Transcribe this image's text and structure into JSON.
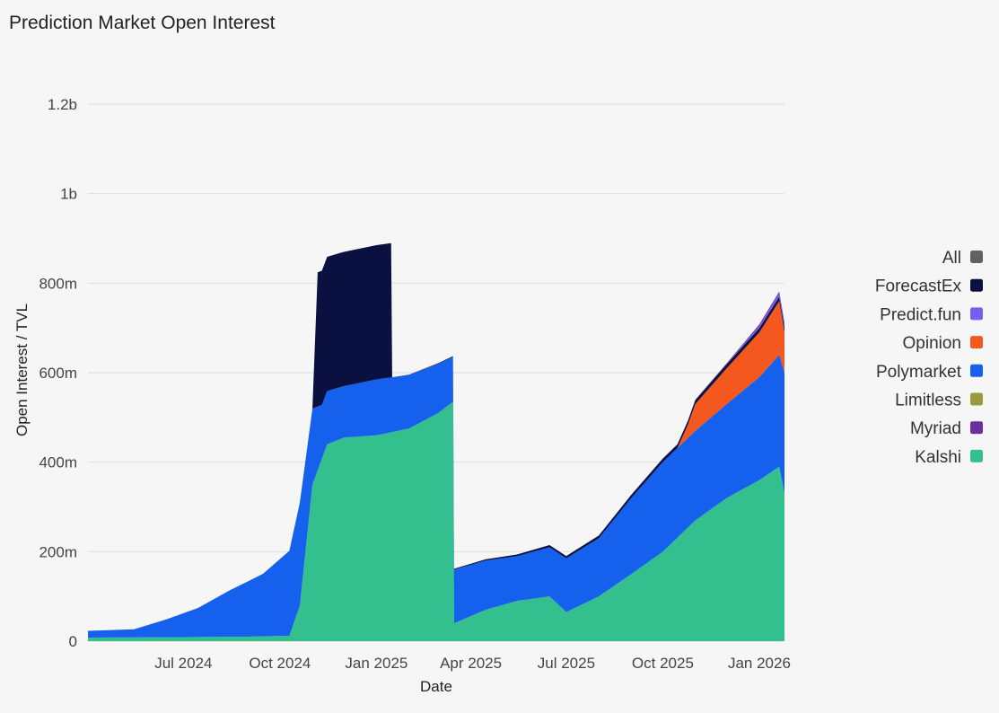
{
  "title": "Prediction Market Open Interest",
  "chart_data": {
    "type": "area",
    "stacked": true,
    "xlabel": "Date",
    "ylabel": "Open Interest / TVL",
    "x_range": [
      "2024-04-01",
      "2026-01-25"
    ],
    "ylim": [
      0,
      1200000000
    ],
    "y_ticks": [
      {
        "value": 0,
        "label": "0"
      },
      {
        "value": 200000000,
        "label": "200m"
      },
      {
        "value": 400000000,
        "label": "400m"
      },
      {
        "value": 600000000,
        "label": "600m"
      },
      {
        "value": 800000000,
        "label": "800m"
      },
      {
        "value": 1000000000,
        "label": "1b"
      },
      {
        "value": 1200000000,
        "label": "1.2b"
      }
    ],
    "x_ticks": [
      {
        "date": "2024-07-01",
        "label": "Jul 2024"
      },
      {
        "date": "2024-10-01",
        "label": "Oct 2024"
      },
      {
        "date": "2025-01-01",
        "label": "Jan 2025"
      },
      {
        "date": "2025-04-01",
        "label": "Apr 2025"
      },
      {
        "date": "2025-07-01",
        "label": "Jul 2025"
      },
      {
        "date": "2025-10-01",
        "label": "Oct 2025"
      },
      {
        "date": "2026-01-01",
        "label": "Jan 2026"
      }
    ],
    "grid": true,
    "legend_position": "right",
    "legend": [
      {
        "name": "All",
        "color": "#5f6166"
      },
      {
        "name": "ForecastEx",
        "color": "#0a1140"
      },
      {
        "name": "Predict.fun",
        "color": "#7b5cf0"
      },
      {
        "name": "Opinion",
        "color": "#f4581e"
      },
      {
        "name": "Polymarket",
        "color": "#1560ec"
      },
      {
        "name": "Limitless",
        "color": "#9b9a3e"
      },
      {
        "name": "Myriad",
        "color": "#6a2fa0"
      },
      {
        "name": "Kalshi",
        "color": "#34c08e"
      }
    ],
    "series": [
      {
        "name": "Kalshi",
        "color": "#34c08e",
        "points": [
          [
            "2024-04-01",
            8000000
          ],
          [
            "2024-07-01",
            9000000
          ],
          [
            "2024-09-01",
            10000000
          ],
          [
            "2024-10-10",
            12000000
          ],
          [
            "2024-10-20",
            80000000
          ],
          [
            "2024-11-01",
            350000000
          ],
          [
            "2024-11-15",
            440000000
          ],
          [
            "2024-12-01",
            455000000
          ],
          [
            "2025-01-01",
            460000000
          ],
          [
            "2025-02-01",
            475000000
          ],
          [
            "2025-03-01",
            510000000
          ],
          [
            "2025-03-15",
            535000000
          ],
          [
            "2025-03-16",
            40000000
          ],
          [
            "2025-04-15",
            70000000
          ],
          [
            "2025-05-15",
            90000000
          ],
          [
            "2025-06-15",
            100000000
          ],
          [
            "2025-07-01",
            65000000
          ],
          [
            "2025-08-01",
            100000000
          ],
          [
            "2025-09-01",
            150000000
          ],
          [
            "2025-10-01",
            200000000
          ],
          [
            "2025-11-01",
            270000000
          ],
          [
            "2025-12-01",
            320000000
          ],
          [
            "2026-01-01",
            360000000
          ],
          [
            "2026-01-20",
            390000000
          ],
          [
            "2026-01-25",
            330000000
          ]
        ]
      },
      {
        "name": "Polymarket",
        "color": "#1560ec",
        "points": [
          [
            "2024-04-01",
            15000000
          ],
          [
            "2024-05-15",
            18000000
          ],
          [
            "2024-06-15",
            40000000
          ],
          [
            "2024-07-15",
            65000000
          ],
          [
            "2024-08-15",
            105000000
          ],
          [
            "2024-09-15",
            140000000
          ],
          [
            "2024-10-10",
            190000000
          ],
          [
            "2024-10-20",
            230000000
          ],
          [
            "2024-11-01",
            170000000
          ],
          [
            "2024-11-10",
            120000000
          ],
          [
            "2024-12-01",
            115000000
          ],
          [
            "2025-01-01",
            125000000
          ],
          [
            "2025-02-01",
            120000000
          ],
          [
            "2025-03-01",
            110000000
          ],
          [
            "2025-03-15",
            100000000
          ],
          [
            "2025-03-16",
            120000000
          ],
          [
            "2025-04-15",
            110000000
          ],
          [
            "2025-05-15",
            100000000
          ],
          [
            "2025-06-15",
            110000000
          ],
          [
            "2025-07-01",
            120000000
          ],
          [
            "2025-08-01",
            130000000
          ],
          [
            "2025-09-01",
            170000000
          ],
          [
            "2025-10-01",
            200000000
          ],
          [
            "2025-11-01",
            200000000
          ],
          [
            "2025-12-01",
            210000000
          ],
          [
            "2026-01-01",
            230000000
          ],
          [
            "2026-01-20",
            250000000
          ],
          [
            "2026-01-25",
            270000000
          ]
        ]
      },
      {
        "name": "Opinion",
        "color": "#f4581e",
        "points": [
          [
            "2025-10-15",
            0
          ],
          [
            "2025-10-25",
            30000000
          ],
          [
            "2025-11-01",
            60000000
          ],
          [
            "2025-12-01",
            80000000
          ],
          [
            "2026-01-01",
            100000000
          ],
          [
            "2026-01-20",
            120000000
          ],
          [
            "2026-01-25",
            90000000
          ]
        ]
      },
      {
        "name": "ForecastEx",
        "color": "#0a1140",
        "points": [
          [
            "2024-11-01",
            0
          ],
          [
            "2024-11-06",
            300000000
          ],
          [
            "2024-11-15",
            300000000
          ],
          [
            "2024-12-01",
            300000000
          ],
          [
            "2025-01-01",
            300000000
          ],
          [
            "2025-01-15",
            300000000
          ],
          [
            "2025-01-16",
            0
          ],
          [
            "2025-10-01",
            8000000
          ],
          [
            "2026-01-25",
            10000000
          ]
        ]
      },
      {
        "name": "Predict.fun",
        "color": "#7b5cf0",
        "points": [
          [
            "2025-12-01",
            0
          ],
          [
            "2026-01-01",
            5000000
          ],
          [
            "2026-01-25",
            8000000
          ]
        ]
      },
      {
        "name": "Myriad",
        "color": "#6a2fa0",
        "points": [
          [
            "2025-10-01",
            0
          ],
          [
            "2026-01-25",
            4000000
          ]
        ]
      }
    ]
  }
}
